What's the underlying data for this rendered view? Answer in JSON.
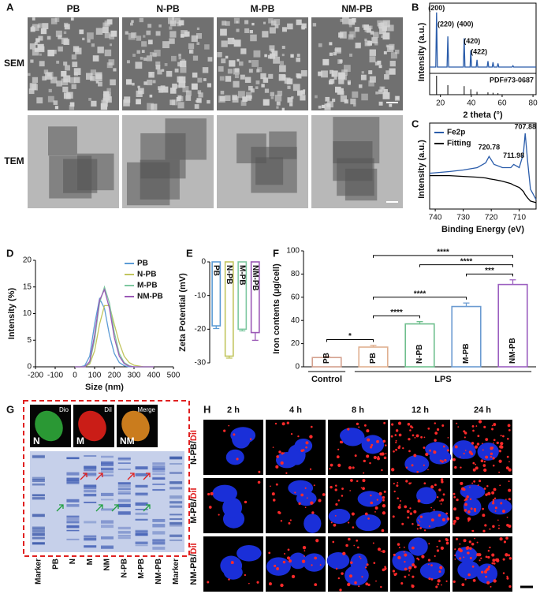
{
  "panel_labels": [
    "A",
    "B",
    "C",
    "D",
    "E",
    "F",
    "G",
    "H"
  ],
  "figure_a": {
    "columns": [
      "PB",
      "N-PB",
      "M-PB",
      "NM-PB"
    ],
    "rows": [
      "SEM",
      "TEM"
    ]
  },
  "figure_g": {
    "images": [
      "Dio",
      "DiI",
      "Merge"
    ],
    "image_letters": [
      "N",
      "M",
      "NM"
    ],
    "lanes": [
      "Marker",
      "PB",
      "N",
      "M",
      "NM",
      "N-PB",
      "M-PB",
      "NM-PB",
      "Marker"
    ]
  },
  "figure_h": {
    "columns": [
      "2 h",
      "4 h",
      "8 h",
      "12 h",
      "24 h"
    ],
    "rows": [
      [
        "N-PB/",
        "DiI"
      ],
      [
        "M-PB/",
        "DiI"
      ],
      [
        "NM-PB/",
        "DiI"
      ]
    ]
  },
  "chart_data": [
    {
      "type": "line",
      "xlabel": "2 theta (°)",
      "ylabel": "Intensity (a.u.)",
      "xlim": [
        13,
        82
      ],
      "xticks": [
        20,
        40,
        60,
        80
      ],
      "ylim": [
        0,
        100
      ],
      "x": [
        13,
        17,
        17.5,
        18,
        24.3,
        24.8,
        25.3,
        34.9,
        35.4,
        35.9,
        39.2,
        39.7,
        40.2,
        43.2,
        43.7,
        44.2,
        50.3,
        50.8,
        51.3,
        53.6,
        54.1,
        54.6,
        56.8,
        57.3,
        57.8,
        66.5,
        67,
        67.5,
        82
      ],
      "series": [
        {
          "color": "#2a5caa",
          "values": [
            4,
            4,
            95,
            4,
            4,
            55,
            4,
            4,
            52,
            4,
            4,
            32,
            4,
            4,
            16,
            4,
            4,
            14,
            4,
            4,
            12,
            4,
            4,
            10,
            4,
            4,
            6,
            4,
            4
          ]
        }
      ],
      "annotations": [
        {
          "text": "(200)",
          "x": 17.5,
          "y": 95
        },
        {
          "text": "(220)",
          "x": 23.5,
          "y": 68
        },
        {
          "text": "(400)",
          "x": 36,
          "y": 68
        },
        {
          "text": "(420)",
          "x": 40.5,
          "y": 40
        },
        {
          "text": "(422)",
          "x": 45,
          "y": 22
        }
      ],
      "reference": {
        "label": "PDF#73-0687",
        "x": [
          17.5,
          24.8,
          35.4,
          39.7,
          43.7,
          50.8,
          54.1,
          57.3
        ],
        "values": [
          100,
          50,
          45,
          28,
          15,
          12,
          10,
          8
        ]
      }
    },
    {
      "type": "line",
      "xlabel": "Binding Energy (eV)",
      "ylabel": "Intensity (a.u.)",
      "xlim": [
        742,
        704
      ],
      "xticks": [
        740,
        730,
        720,
        710
      ],
      "ylim": [
        0,
        100
      ],
      "legend": "upper left",
      "x": [
        742,
        735,
        730,
        725,
        722,
        720.78,
        719,
        716,
        713,
        711.98,
        710,
        708.5,
        707.88,
        707,
        706,
        704
      ],
      "series": [
        {
          "name": "Fe2p",
          "color": "#2a5caa",
          "values": [
            45,
            47,
            49,
            52,
            58,
            66,
            56,
            52,
            52,
            56,
            52,
            70,
            95,
            60,
            25,
            12
          ]
        },
        {
          "name": "Fitting",
          "color": "#000000",
          "values": [
            42,
            42,
            41,
            40,
            39,
            38,
            37,
            35,
            32,
            30,
            27,
            22,
            18,
            14,
            10,
            8
          ]
        }
      ],
      "annotations": [
        {
          "x": 720.78,
          "y": 72
        },
        {
          "x": 711.98,
          "y": 62
        },
        {
          "x": 707.88,
          "y": 98
        }
      ]
    },
    {
      "type": "line",
      "xlabel": "Size (nm)",
      "ylabel": "Intensity (%)",
      "xlim": [
        -200,
        500
      ],
      "xticks": [
        -200,
        -100,
        0,
        100,
        200,
        300,
        400,
        500
      ],
      "ylim": [
        0,
        20
      ],
      "yticks": [
        0,
        5,
        10,
        15,
        20
      ],
      "legend": "upper right",
      "x": [
        0,
        25,
        50,
        75,
        100,
        125,
        150,
        175,
        200,
        225,
        250,
        275,
        300,
        350,
        400
      ],
      "series": [
        {
          "name": "PB",
          "color": "#5b9bd5",
          "values": [
            0,
            0,
            0.2,
            2,
            8,
            12.8,
            11,
            6,
            2.5,
            0.8,
            0.2,
            0,
            0,
            0,
            0
          ]
        },
        {
          "name": "N-PB",
          "color": "#c2c55e",
          "values": [
            0,
            0,
            0,
            0.5,
            3,
            8,
            11.5,
            11.5,
            8,
            4.5,
            2,
            0.8,
            0.3,
            0,
            0
          ]
        },
        {
          "name": "M-PB",
          "color": "#7ec8a0",
          "values": [
            0,
            0,
            0,
            0.8,
            5,
            12,
            15,
            12,
            6.5,
            2.5,
            0.8,
            0.2,
            0,
            0,
            0
          ]
        },
        {
          "name": "NM-PB",
          "color": "#9b59b6",
          "values": [
            0,
            0,
            0,
            1,
            6,
            12.5,
            14.5,
            11,
            5.5,
            2,
            0.6,
            0.1,
            0,
            0,
            0
          ]
        }
      ]
    },
    {
      "type": "bar",
      "ylabel": "Zeta Potential (mV)",
      "ylim": [
        -30,
        0
      ],
      "yticks": [
        -30,
        -20,
        -10,
        0
      ],
      "categories": [
        "PB",
        "N-PB",
        "M-PB",
        "NM-PB"
      ],
      "values": [
        -19,
        -28,
        -20,
        -21
      ],
      "errors": [
        0.8,
        0.6,
        0.5,
        2.3
      ],
      "colors": [
        "#5b9bd5",
        "#c2c55e",
        "#7ec8a0",
        "#9b59b6"
      ]
    },
    {
      "type": "bar",
      "ylabel": "Iron contents (µg/cell)",
      "ylim": [
        0,
        100
      ],
      "yticks": [
        0,
        20,
        40,
        60,
        80,
        100
      ],
      "categories": [
        "PB",
        "PB",
        "N-PB",
        "M-PB",
        "NM-PB"
      ],
      "values": [
        8,
        17,
        37,
        52,
        71
      ],
      "errors": [
        1,
        1.5,
        2,
        3,
        4
      ],
      "colors": [
        "#d4a08e",
        "#e0b090",
        "#6fbf8e",
        "#6b9bd1",
        "#9b5fc0"
      ],
      "groups": [
        {
          "name": "Control",
          "from": 0,
          "to": 0
        },
        {
          "name": "LPS",
          "from": 1,
          "to": 4
        }
      ],
      "brackets": [
        {
          "from": 0,
          "to": 1,
          "label": "*"
        },
        {
          "from": 1,
          "to": 2,
          "label": "****"
        },
        {
          "from": 1,
          "to": 3,
          "label": "****"
        },
        {
          "from": 3,
          "to": 4,
          "label": "***"
        },
        {
          "from": 2,
          "to": 4,
          "label": "****"
        },
        {
          "from": 1,
          "to": 4,
          "label": "****"
        }
      ]
    }
  ]
}
